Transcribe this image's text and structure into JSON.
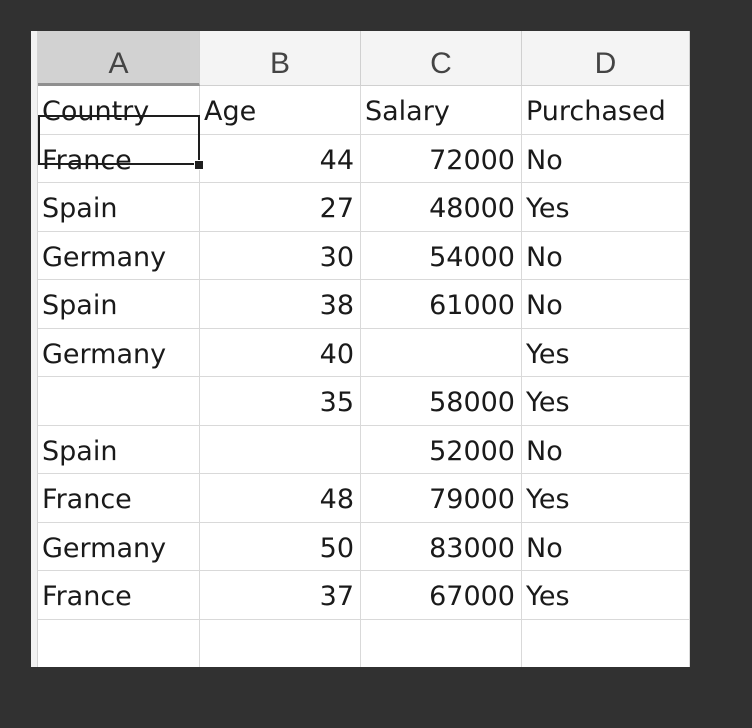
{
  "columns": [
    "A",
    "B",
    "C",
    "D"
  ],
  "selected_column": "A",
  "rows": [
    [
      "Country",
      "Age",
      "Salary",
      "Purchased"
    ],
    [
      "France",
      "44",
      "72000",
      "No"
    ],
    [
      "Spain",
      "27",
      "48000",
      "Yes"
    ],
    [
      "Germany",
      "30",
      "54000",
      "No"
    ],
    [
      "Spain",
      "38",
      "61000",
      "No"
    ],
    [
      "Germany",
      "40",
      "",
      "Yes"
    ],
    [
      "",
      "35",
      "58000",
      "Yes"
    ],
    [
      "Spain",
      "",
      "52000",
      "No"
    ],
    [
      "France",
      "48",
      "79000",
      "Yes"
    ],
    [
      "Germany",
      "50",
      "83000",
      "No"
    ],
    [
      "France",
      "37",
      "67000",
      "Yes"
    ],
    [
      "",
      "",
      "",
      ""
    ]
  ],
  "active_cell": {
    "row": 0,
    "column": "A",
    "value": "Country"
  }
}
